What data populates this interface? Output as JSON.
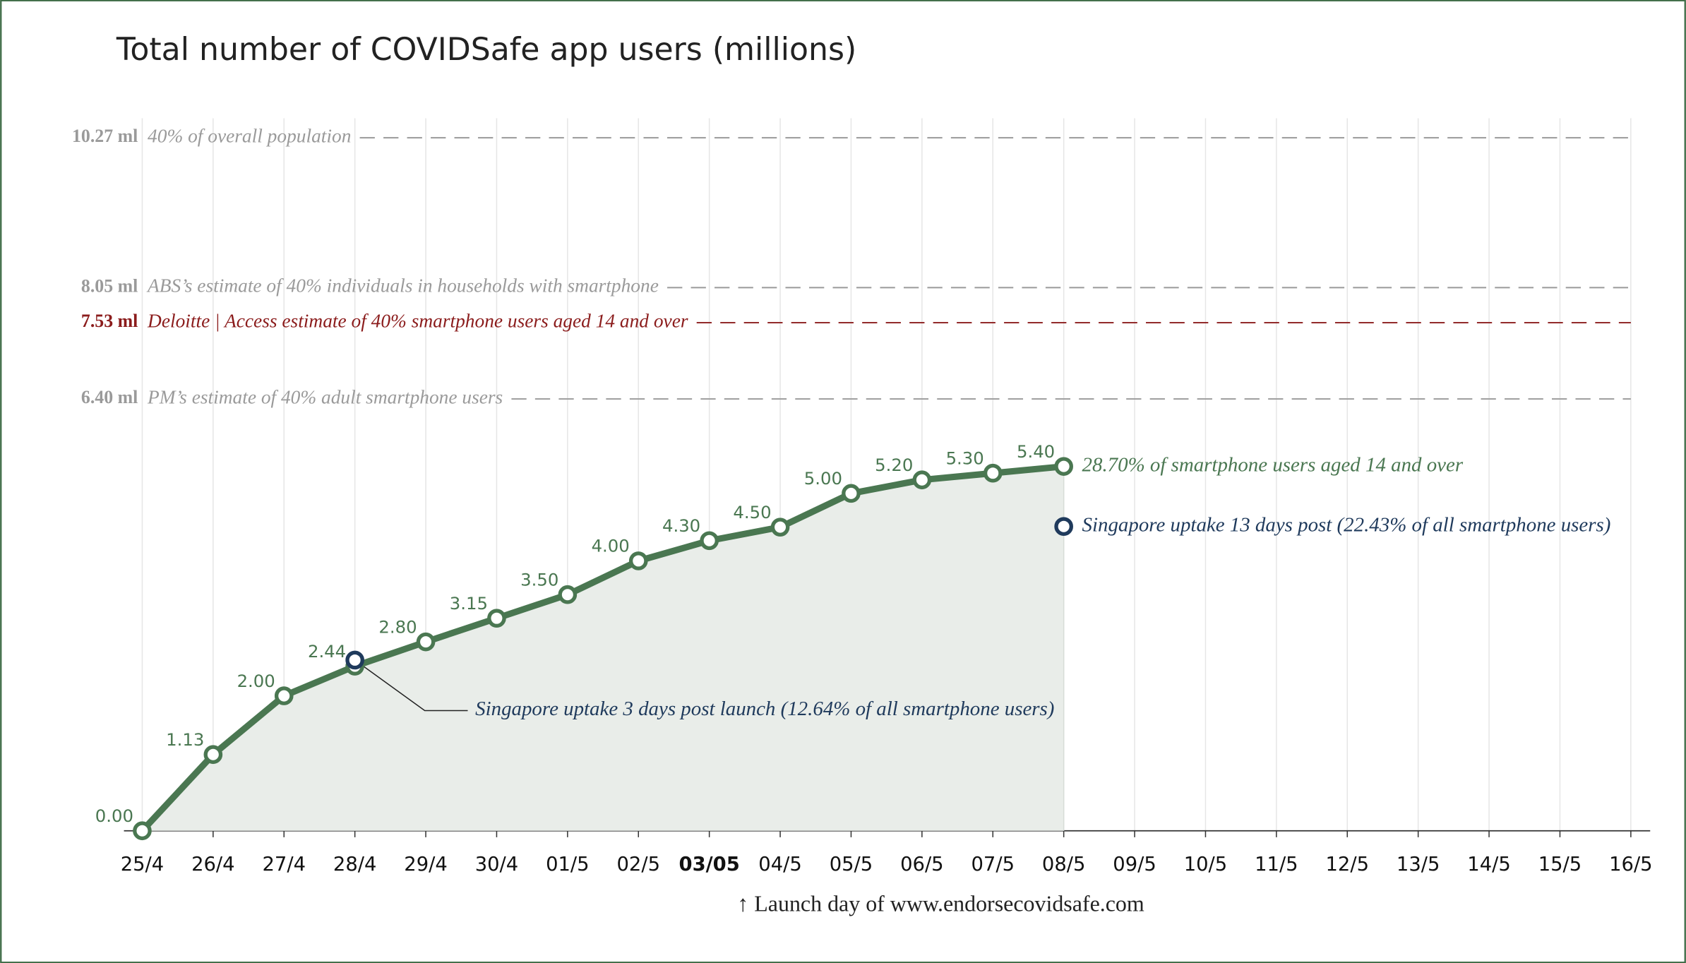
{
  "chart_data": {
    "type": "line",
    "title": "Total number of COVIDSafe app users (millions)",
    "categories": [
      "25/4",
      "26/4",
      "27/4",
      "28/4",
      "29/4",
      "30/4",
      "01/5",
      "02/5",
      "03/05",
      "04/5",
      "05/5",
      "06/5",
      "07/5",
      "08/5",
      "09/5",
      "10/5",
      "11/5",
      "12/5",
      "13/5",
      "14/5",
      "15/5",
      "16/5"
    ],
    "highlight_category": "03/05",
    "values": [
      0,
      1.13,
      2,
      2.44,
      2.8,
      3.15,
      3.5,
      4,
      4.3,
      4.5,
      5,
      5.2,
      5.3,
      5.4,
      null,
      null,
      null,
      null,
      null,
      null,
      null,
      null
    ],
    "value_labels": [
      "0.00",
      "1.13",
      "2.00",
      "2.44",
      "2.80",
      "3.15",
      "3.50",
      "4.00",
      "4.30",
      "4.50",
      "5.00",
      "5.20",
      "5.30",
      "5.40",
      null,
      null,
      null,
      null,
      null,
      null,
      null,
      null
    ],
    "color": "#4a7751",
    "area_color": "#e9ede9",
    "ylim": [
      0,
      10.56
    ],
    "grid": true,
    "end_label": "28.70% of smartphone users aged 14 and over",
    "reference_lines": [
      {
        "value": 10.27,
        "label": "10.27 ml",
        "text": "40% of overall population",
        "color": "#9a9a9a"
      },
      {
        "value": 8.05,
        "label": "8.05 ml",
        "text": "ABS’s estimate of 40% individuals in households with smartphone",
        "color": "#9a9a9a"
      },
      {
        "value": 7.53,
        "label": "7.53 ml",
        "text": "Deloitte | Access estimate of 40% smartphone users aged 14 and over",
        "color": "#8b1c1c"
      },
      {
        "value": 6.4,
        "label": "6.40 ml",
        "text": "PM’s estimate of 40% adult smartphone users",
        "color": "#9a9a9a"
      }
    ],
    "annotations": [
      {
        "category": "28/4",
        "value": 2.53,
        "text": "Singapore uptake 3 days post launch (12.64% of all smartphone users)",
        "color": "#1f3a5c"
      },
      {
        "category": "08/5",
        "value": 4.51,
        "text": "Singapore uptake 13 days post (22.43% of all smartphone users)",
        "color": "#1f3a5c"
      }
    ],
    "footer": "↑ Launch day of www.endorsecovidsafe.com"
  }
}
